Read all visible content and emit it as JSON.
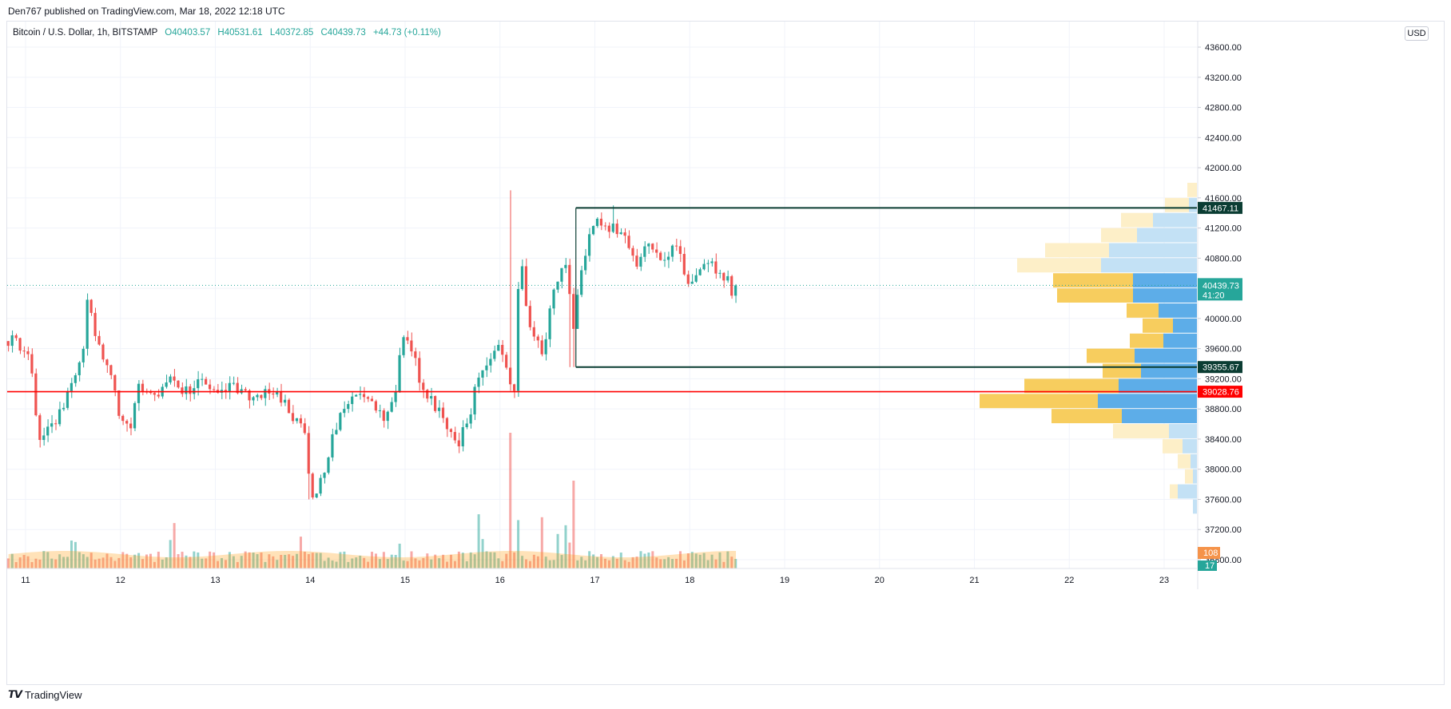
{
  "header": {
    "published": "Den767 published on TradingView.com, Mar 18, 2022 12:18 UTC"
  },
  "legend": {
    "symbol": "Bitcoin / U.S. Dollar, 1h, BITSTAMP",
    "open_label": "O",
    "open": "40403.57",
    "high_label": "H",
    "high": "40531.61",
    "low_label": "L",
    "low": "40372.85",
    "close_label": "C",
    "close": "40439.73",
    "change": "+44.73 (+0.11%)"
  },
  "currency": "USD",
  "footer": {
    "brand": "TradingView"
  },
  "colors": {
    "up": "#26a69a",
    "down": "#ef5350",
    "grid": "#f0f3fa",
    "resistance": "#0b3d33",
    "support_line": "#ff0000",
    "vp_up": "#5dade8",
    "vp_down": "#f7cd5e"
  },
  "chart_data": {
    "type": "candlestick",
    "title": "",
    "xlabel": "",
    "ylabel": "",
    "y_ticks": [
      "43600.00",
      "43200.00",
      "42800.00",
      "42400.00",
      "42000.00",
      "41600.00",
      "41200.00",
      "40800.00",
      "40400.00",
      "40000.00",
      "39600.00",
      "39200.00",
      "38800.00",
      "38400.00",
      "38000.00",
      "37600.00",
      "37200.00",
      "36800.00"
    ],
    "x_ticks": [
      "11",
      "12",
      "13",
      "14",
      "15",
      "16",
      "17",
      "18",
      "19",
      "20",
      "21",
      "22",
      "23"
    ],
    "ylim": [
      36800,
      43900
    ],
    "last_price": "40439.73",
    "countdown": "41:20",
    "horizontal_levels": [
      {
        "label": "41467.11",
        "value": 41467.11
      },
      {
        "label": "39355.67",
        "value": 39355.67
      },
      {
        "label": "39028.76",
        "value": 39028.76
      }
    ],
    "rectangle": {
      "x_from": 16.8,
      "x_to": 23.4,
      "y_top": 41467.11,
      "y_bottom": 39355.67
    },
    "volume_labels": [
      "108",
      "17"
    ],
    "anchors": [
      [
        10.9,
        39700
      ],
      [
        11.05,
        39500
      ],
      [
        11.1,
        38900
      ],
      [
        11.15,
        38350
      ],
      [
        11.35,
        38700
      ],
      [
        11.5,
        39100
      ],
      [
        11.6,
        39500
      ],
      [
        11.65,
        40300
      ],
      [
        11.7,
        40000
      ],
      [
        11.8,
        39600
      ],
      [
        11.9,
        39200
      ],
      [
        12.0,
        38700
      ],
      [
        12.1,
        38500
      ],
      [
        12.2,
        39100
      ],
      [
        12.35,
        38900
      ],
      [
        12.5,
        39200
      ],
      [
        12.7,
        39050
      ],
      [
        12.9,
        39150
      ],
      [
        13.0,
        38950
      ],
      [
        13.2,
        39100
      ],
      [
        13.4,
        38900
      ],
      [
        13.6,
        39050
      ],
      [
        13.75,
        38900
      ],
      [
        13.85,
        38600
      ],
      [
        13.95,
        38550
      ],
      [
        14.0,
        37800
      ],
      [
        14.05,
        37650
      ],
      [
        14.2,
        38200
      ],
      [
        14.3,
        38700
      ],
      [
        14.5,
        39050
      ],
      [
        14.65,
        38900
      ],
      [
        14.8,
        38700
      ],
      [
        14.9,
        39050
      ],
      [
        14.95,
        39600
      ],
      [
        15.0,
        39800
      ],
      [
        15.1,
        39500
      ],
      [
        15.2,
        39000
      ],
      [
        15.35,
        38800
      ],
      [
        15.45,
        38450
      ],
      [
        15.55,
        38350
      ],
      [
        15.65,
        38550
      ],
      [
        15.75,
        39100
      ],
      [
        15.9,
        39450
      ],
      [
        16.0,
        39650
      ],
      [
        16.08,
        39300
      ],
      [
        16.15,
        39000
      ],
      [
        16.18,
        40100
      ],
      [
        16.22,
        40900
      ],
      [
        16.3,
        40000
      ],
      [
        16.45,
        39450
      ],
      [
        16.55,
        40300
      ],
      [
        16.65,
        40600
      ],
      [
        16.72,
        40700
      ],
      [
        16.75,
        40100
      ],
      [
        16.78,
        39900
      ],
      [
        16.85,
        40550
      ],
      [
        16.95,
        41100
      ],
      [
        17.05,
        41300
      ],
      [
        17.15,
        41200
      ],
      [
        17.25,
        41150
      ],
      [
        17.35,
        40950
      ],
      [
        17.45,
        40700
      ],
      [
        17.55,
        41000
      ],
      [
        17.65,
        40800
      ],
      [
        17.75,
        40850
      ],
      [
        17.85,
        40900
      ],
      [
        17.9,
        40800
      ],
      [
        18.0,
        40450
      ],
      [
        18.1,
        40550
      ],
      [
        18.2,
        40800
      ],
      [
        18.3,
        40650
      ],
      [
        18.4,
        40550
      ],
      [
        18.45,
        40350
      ],
      [
        18.5,
        40440
      ]
    ],
    "volume_profile_note": "visible range volume profile on right edge, up volume blue, down volume yellow"
  }
}
